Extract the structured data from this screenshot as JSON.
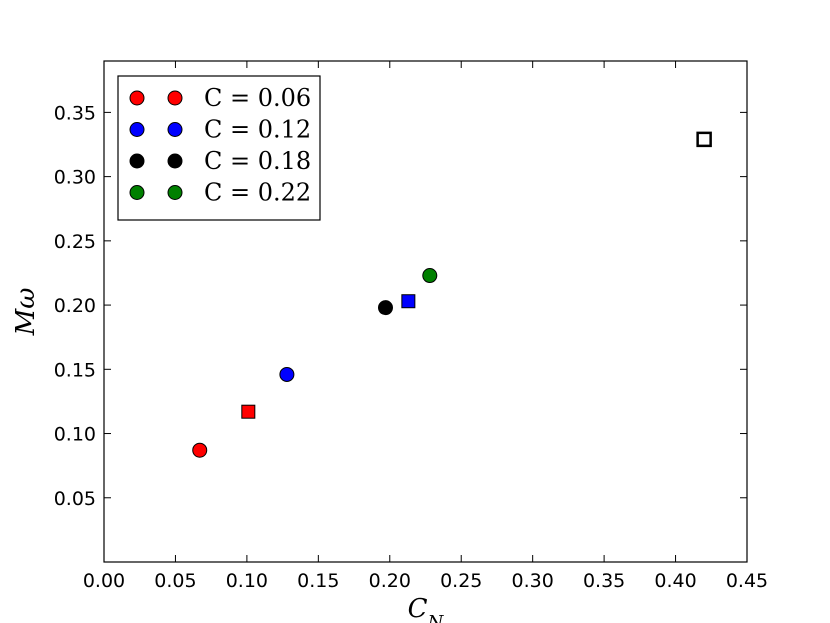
{
  "chart_data": {
    "type": "scatter",
    "title": "",
    "xlabel": "C_N",
    "ylabel": "Mω",
    "xlim": [
      0.0,
      0.45
    ],
    "ylim": [
      0.0,
      0.39
    ],
    "x_ticks": [
      "0.00",
      "0.05",
      "0.10",
      "0.15",
      "0.20",
      "0.25",
      "0.30",
      "0.35",
      "0.40",
      "0.45"
    ],
    "y_ticks": [
      "0.05",
      "0.10",
      "0.15",
      "0.20",
      "0.25",
      "0.30",
      "0.35"
    ],
    "grid": false,
    "legend_position": "top-left",
    "series": [
      {
        "name": "C = 0.06",
        "color": "#ff0000",
        "marker": "circle",
        "x": [
          0.067
        ],
        "y": [
          0.087
        ]
      },
      {
        "name": "C = 0.12",
        "color": "#0000ff",
        "marker": "circle",
        "x": [
          0.128
        ],
        "y": [
          0.146
        ]
      },
      {
        "name": "C = 0.18",
        "color": "#000000",
        "marker": "circle",
        "x": [
          0.197
        ],
        "y": [
          0.198
        ]
      },
      {
        "name": "C = 0.22",
        "color": "#008000",
        "marker": "circle",
        "x": [
          0.228
        ],
        "y": [
          0.223
        ]
      }
    ],
    "extra_points": [
      {
        "color": "#ff0000",
        "marker": "square",
        "filled": true,
        "x": 0.101,
        "y": 0.117
      },
      {
        "color": "#0000ff",
        "marker": "square",
        "filled": true,
        "x": 0.213,
        "y": 0.203
      },
      {
        "color": "#000000",
        "marker": "square",
        "filled": false,
        "x": 0.42,
        "y": 0.329
      }
    ]
  }
}
